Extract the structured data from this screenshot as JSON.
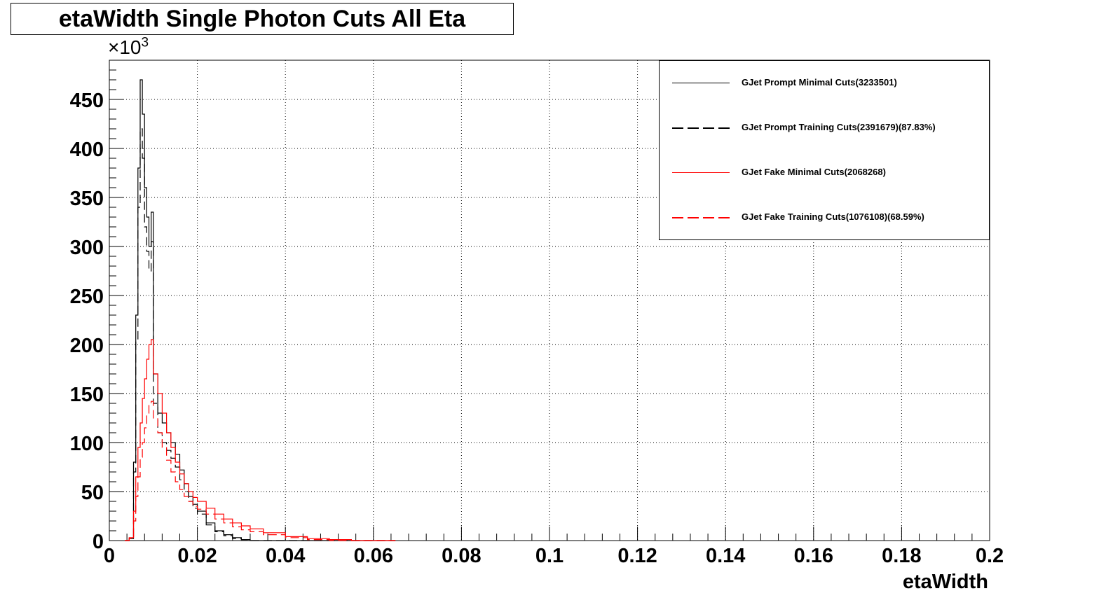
{
  "chart_data": {
    "type": "line",
    "title": "etaWidth Single Photon Cuts All Eta",
    "xlabel": "etaWidth",
    "ylabel": "",
    "y_multiplier": "×10",
    "y_multiplier_exponent": "3",
    "xlim": [
      0,
      0.2
    ],
    "ylim": [
      0,
      490
    ],
    "grid": true,
    "legend_position": "top-right",
    "x_ticks": [
      "0",
      "0.02",
      "0.04",
      "0.06",
      "0.08",
      "0.1",
      "0.12",
      "0.14",
      "0.16",
      "0.18",
      "0.2"
    ],
    "y_ticks": [
      "0",
      "50",
      "100",
      "150",
      "200",
      "250",
      "300",
      "350",
      "400",
      "450"
    ],
    "x": [
      0.0035,
      0.0045,
      0.0055,
      0.006,
      0.0065,
      0.007,
      0.0075,
      0.008,
      0.0085,
      0.009,
      0.0095,
      0.01,
      0.011,
      0.012,
      0.013,
      0.014,
      0.015,
      0.016,
      0.017,
      0.018,
      0.019,
      0.02,
      0.022,
      0.024,
      0.026,
      0.028,
      0.03,
      0.032,
      0.035,
      0.04,
      0.045,
      0.05,
      0.055,
      0.06
    ],
    "series": [
      {
        "name": "GJet Prompt Minimal Cuts(3233501)",
        "color": "#000000",
        "dash": "solid",
        "values": [
          0,
          2,
          80,
          230,
          380,
          470,
          435,
          360,
          330,
          300,
          335,
          170,
          130,
          120,
          110,
          100,
          88,
          72,
          58,
          45,
          37,
          30,
          18,
          10,
          6,
          3,
          1,
          0,
          0,
          0,
          0,
          0,
          0,
          0
        ]
      },
      {
        "name": "GJet Prompt Training Cuts(2391679)(87.83%)",
        "color": "#000000",
        "dash": "dashed",
        "values": [
          0,
          2,
          70,
          205,
          340,
          420,
          390,
          320,
          295,
          275,
          305,
          140,
          110,
          100,
          92,
          84,
          75,
          62,
          50,
          40,
          33,
          27,
          16,
          9,
          5,
          2,
          1,
          0,
          0,
          0,
          0,
          0,
          0,
          0
        ]
      },
      {
        "name": "GJet Fake Minimal Cuts(2068268)",
        "color": "#ff0000",
        "dash": "solid",
        "values": [
          0,
          3,
          30,
          65,
          95,
          120,
          145,
          165,
          185,
          200,
          205,
          170,
          150,
          130,
          110,
          95,
          80,
          68,
          58,
          50,
          44,
          40,
          33,
          27,
          22,
          18,
          15,
          12,
          8,
          4,
          2,
          1,
          0,
          0
        ]
      },
      {
        "name": "GJet Fake Training Cuts(1076108)(68.59%)",
        "color": "#ff0000",
        "dash": "dashed",
        "values": [
          0,
          2,
          20,
          45,
          65,
          85,
          100,
          115,
          130,
          140,
          142,
          125,
          110,
          95,
          82,
          70,
          60,
          52,
          45,
          40,
          35,
          32,
          27,
          22,
          18,
          14,
          11,
          9,
          6,
          3,
          1,
          0,
          0,
          0
        ]
      }
    ]
  }
}
